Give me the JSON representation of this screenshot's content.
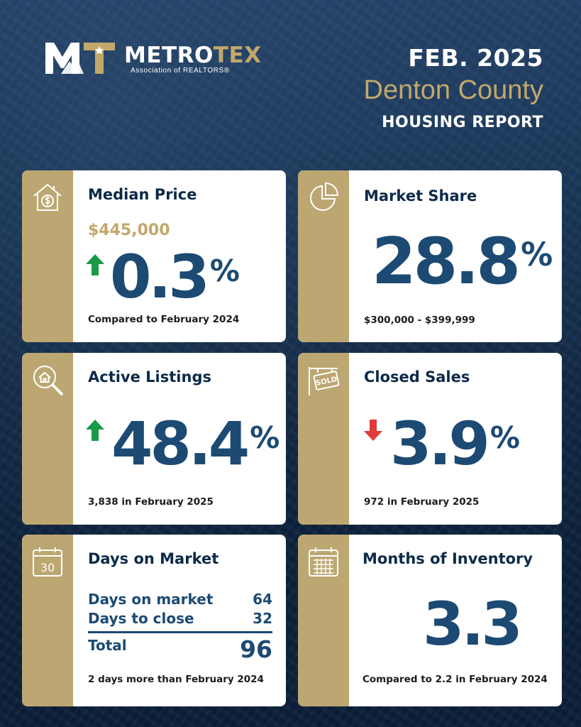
{
  "header": {
    "brand_main": "METRO",
    "brand_accent": "TEX",
    "brand_sub": "Association of REALTORS®",
    "month": "FEB. 2025",
    "county": "Denton County",
    "report": "HOUSING REPORT"
  },
  "colors": {
    "navy": "#0e2542",
    "gold": "#bca772",
    "gold_text": "#c2a86a",
    "value_blue": "#1c4a73",
    "up_green": "#1a9a48",
    "down_red": "#e03a3a"
  },
  "cards": {
    "median_price": {
      "icon": "house-dollar-icon",
      "title": "Median Price",
      "price": "$445,000",
      "direction": "up",
      "value": "0.3",
      "unit": "%",
      "note": "Compared to February 2024"
    },
    "market_share": {
      "icon": "pie-chart-icon",
      "title": "Market Share",
      "value": "28.8",
      "unit": "%",
      "note": "$300,000 - $399,999"
    },
    "active_listings": {
      "icon": "house-search-icon",
      "title": "Active Listings",
      "direction": "up",
      "value": "48.4",
      "unit": "%",
      "note": "3,838 in February 2025"
    },
    "closed_sales": {
      "icon": "sold-sign-icon",
      "title": "Closed Sales",
      "direction": "down",
      "value": "3.9",
      "unit": "%",
      "note": "972 in February 2025",
      "sign_text": "SOLD"
    },
    "days_on_market": {
      "icon": "calendar-30-icon",
      "icon_text": "30",
      "title": "Days on Market",
      "rows": [
        {
          "label": "Days on market",
          "value": "64"
        },
        {
          "label": "Days to close",
          "value": "32"
        }
      ],
      "total_label": "Total",
      "total_value": "96",
      "note": "2 days more than February 2024"
    },
    "months_inventory": {
      "icon": "calendar-grid-icon",
      "title": "Months of Inventory",
      "value": "3.3",
      "note": "Compared to 2.2 in February 2024"
    }
  }
}
